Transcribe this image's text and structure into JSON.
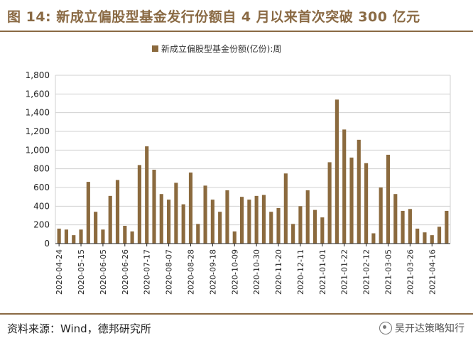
{
  "figure": {
    "title": "图 14: 新成立偏股型基金发行份额自 4 月以来首次突破 300 亿元",
    "source": "资料来源：Wind，德邦研究所",
    "watermark": "吴开达策略知行",
    "bar_color": "#8b6a3e",
    "accent_color": "#8a6a44"
  },
  "chart_data": {
    "type": "bar",
    "legend": {
      "label": "新成立偏股型基金份额(亿份):周",
      "placement": "top-center"
    },
    "ylim": [
      0,
      1800
    ],
    "yticks": [
      "0",
      "200",
      "400",
      "600",
      "800",
      "1,000",
      "1,200",
      "1,400",
      "1,600",
      "1,800"
    ],
    "grid": true,
    "xtick_labels": [
      "2020-04-24",
      "2020-05-15",
      "2020-06-05",
      "2020-06-26",
      "2020-07-17",
      "2020-08-07",
      "2020-08-28",
      "2020-09-18",
      "2020-10-09",
      "2020-10-30",
      "2020-11-20",
      "2020-12-11",
      "2021-01-01",
      "2021-01-22",
      "2021-02-12",
      "2021-03-05",
      "2021-03-26",
      "2021-04-16"
    ],
    "x_dates": [
      "2020-04-24",
      "2020-05-01",
      "2020-05-08",
      "2020-05-15",
      "2020-05-22",
      "2020-05-29",
      "2020-06-05",
      "2020-06-12",
      "2020-06-19",
      "2020-06-26",
      "2020-07-03",
      "2020-07-10",
      "2020-07-17",
      "2020-07-24",
      "2020-07-31",
      "2020-08-07",
      "2020-08-14",
      "2020-08-21",
      "2020-08-28",
      "2020-09-04",
      "2020-09-11",
      "2020-09-18",
      "2020-09-25",
      "2020-10-02",
      "2020-10-09",
      "2020-10-16",
      "2020-10-23",
      "2020-10-30",
      "2020-11-06",
      "2020-11-13",
      "2020-11-20",
      "2020-11-27",
      "2020-12-04",
      "2020-12-11",
      "2020-12-18",
      "2020-12-25",
      "2021-01-01",
      "2021-01-08",
      "2021-01-15",
      "2021-01-22",
      "2021-01-29",
      "2021-02-05",
      "2021-02-12",
      "2021-02-19",
      "2021-02-26",
      "2021-03-05",
      "2021-03-12",
      "2021-03-19",
      "2021-03-26",
      "2021-04-02",
      "2021-04-09",
      "2021-04-16",
      "2021-04-23",
      "2021-04-30"
    ],
    "values": [
      160,
      150,
      90,
      150,
      660,
      340,
      150,
      510,
      680,
      190,
      130,
      840,
      1040,
      790,
      530,
      470,
      650,
      420,
      760,
      210,
      620,
      470,
      340,
      570,
      130,
      500,
      470,
      510,
      520,
      340,
      380,
      750,
      210,
      400,
      570,
      360,
      280,
      870,
      1540,
      1220,
      920,
      1110,
      860,
      110,
      600,
      950,
      530,
      350,
      370,
      160,
      120,
      90,
      180,
      350
    ]
  }
}
